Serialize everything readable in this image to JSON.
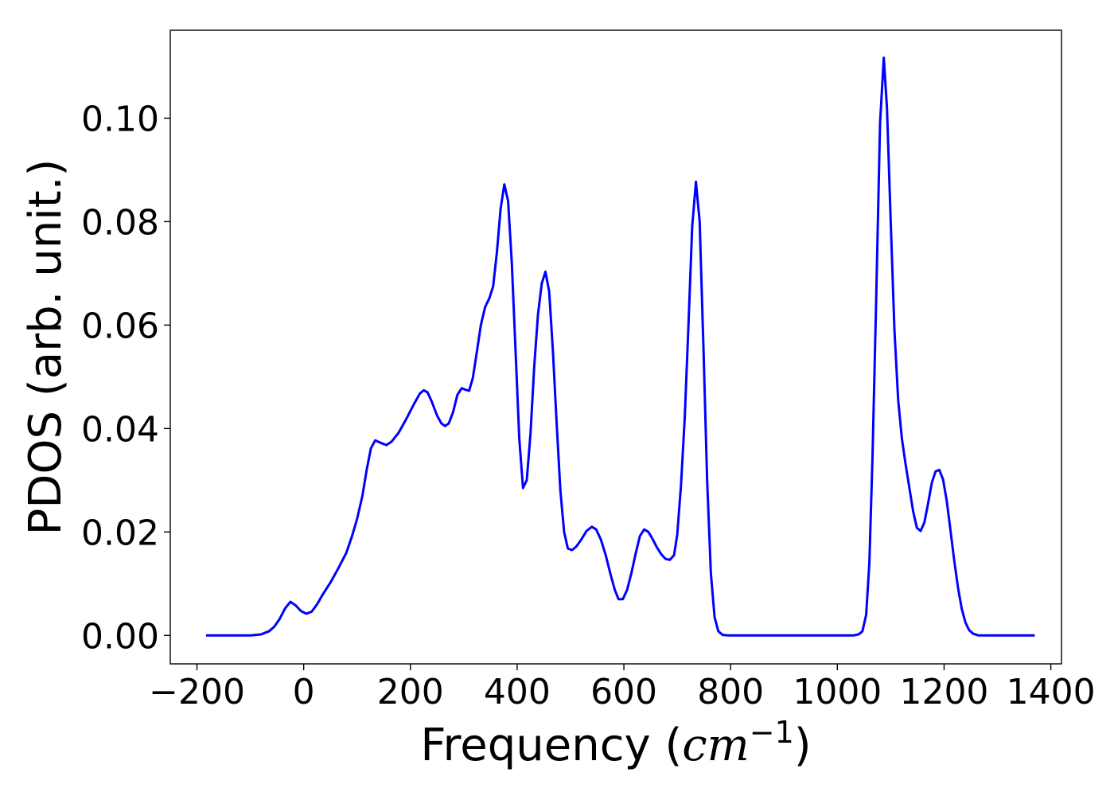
{
  "chart_data": {
    "type": "line",
    "title": "",
    "xlabel": "Frequency",
    "xlabel_unit_base": "cm",
    "xlabel_unit_exp": "−1",
    "ylabel": "PDOS (arb. unit.)",
    "xlim": [
      -250,
      1420
    ],
    "ylim": [
      -0.0055,
      0.117
    ],
    "grid": false,
    "x_ticks": [
      -200,
      0,
      200,
      400,
      600,
      800,
      1000,
      1200,
      1400
    ],
    "x_tick_labels": [
      "−200",
      "0",
      "200",
      "400",
      "600",
      "800",
      "1000",
      "1200",
      "1400"
    ],
    "y_ticks": [
      0.0,
      0.02,
      0.04,
      0.06,
      0.08,
      0.1
    ],
    "y_tick_labels": [
      "0.00",
      "0.02",
      "0.04",
      "0.06",
      "0.08",
      "0.10"
    ],
    "series": [
      {
        "color": "#0000ff",
        "points": [
          [
            -183,
            0.0
          ],
          [
            -100,
            0.0
          ],
          [
            -80,
            0.0002
          ],
          [
            -65,
            0.0008
          ],
          [
            -55,
            0.0017
          ],
          [
            -45,
            0.0032
          ],
          [
            -35,
            0.0052
          ],
          [
            -25,
            0.0065
          ],
          [
            -15,
            0.0058
          ],
          [
            -5,
            0.0047
          ],
          [
            5,
            0.0042
          ],
          [
            15,
            0.0046
          ],
          [
            25,
            0.006
          ],
          [
            35,
            0.0078
          ],
          [
            50,
            0.0102
          ],
          [
            65,
            0.013
          ],
          [
            80,
            0.016
          ],
          [
            90,
            0.019
          ],
          [
            100,
            0.0225
          ],
          [
            110,
            0.027
          ],
          [
            118,
            0.032
          ],
          [
            126,
            0.0362
          ],
          [
            134,
            0.0377
          ],
          [
            145,
            0.0372
          ],
          [
            155,
            0.0368
          ],
          [
            165,
            0.0375
          ],
          [
            178,
            0.0392
          ],
          [
            192,
            0.0418
          ],
          [
            207,
            0.0448
          ],
          [
            218,
            0.0468
          ],
          [
            225,
            0.0474
          ],
          [
            232,
            0.047
          ],
          [
            240,
            0.0452
          ],
          [
            250,
            0.0425
          ],
          [
            258,
            0.041
          ],
          [
            265,
            0.0405
          ],
          [
            272,
            0.041
          ],
          [
            280,
            0.0432
          ],
          [
            288,
            0.0465
          ],
          [
            296,
            0.0478
          ],
          [
            303,
            0.0475
          ],
          [
            310,
            0.0473
          ],
          [
            317,
            0.0498
          ],
          [
            324,
            0.0545
          ],
          [
            332,
            0.06
          ],
          [
            340,
            0.0635
          ],
          [
            348,
            0.0652
          ],
          [
            355,
            0.0675
          ],
          [
            362,
            0.074
          ],
          [
            369,
            0.0825
          ],
          [
            376,
            0.0872
          ],
          [
            383,
            0.084
          ],
          [
            390,
            0.072
          ],
          [
            397,
            0.055
          ],
          [
            404,
            0.038
          ],
          [
            411,
            0.0285
          ],
          [
            418,
            0.03
          ],
          [
            425,
            0.039
          ],
          [
            432,
            0.052
          ],
          [
            439,
            0.062
          ],
          [
            446,
            0.068
          ],
          [
            453,
            0.0703
          ],
          [
            460,
            0.0665
          ],
          [
            467,
            0.055
          ],
          [
            474,
            0.041
          ],
          [
            481,
            0.028
          ],
          [
            488,
            0.02
          ],
          [
            495,
            0.0168
          ],
          [
            503,
            0.0165
          ],
          [
            511,
            0.0172
          ],
          [
            520,
            0.0185
          ],
          [
            530,
            0.0202
          ],
          [
            540,
            0.021
          ],
          [
            548,
            0.0205
          ],
          [
            557,
            0.0185
          ],
          [
            566,
            0.0155
          ],
          [
            575,
            0.0118
          ],
          [
            583,
            0.0088
          ],
          [
            590,
            0.007
          ],
          [
            598,
            0.007
          ],
          [
            606,
            0.0088
          ],
          [
            614,
            0.012
          ],
          [
            622,
            0.0158
          ],
          [
            630,
            0.0192
          ],
          [
            638,
            0.0205
          ],
          [
            646,
            0.02
          ],
          [
            654,
            0.0186
          ],
          [
            662,
            0.017
          ],
          [
            670,
            0.0157
          ],
          [
            678,
            0.0148
          ],
          [
            686,
            0.0146
          ],
          [
            694,
            0.0155
          ],
          [
            700,
            0.0195
          ],
          [
            707,
            0.029
          ],
          [
            714,
            0.042
          ],
          [
            721,
            0.06
          ],
          [
            728,
            0.079
          ],
          [
            735,
            0.0877
          ],
          [
            742,
            0.08
          ],
          [
            749,
            0.056
          ],
          [
            756,
            0.03
          ],
          [
            763,
            0.012
          ],
          [
            770,
            0.0035
          ],
          [
            777,
            0.0008
          ],
          [
            785,
            0.0001
          ],
          [
            795,
            0.0
          ],
          [
            1030,
            0.0
          ],
          [
            1040,
            0.0002
          ],
          [
            1047,
            0.0008
          ],
          [
            1054,
            0.004
          ],
          [
            1060,
            0.014
          ],
          [
            1066,
            0.035
          ],
          [
            1073,
            0.066
          ],
          [
            1080,
            0.099
          ],
          [
            1087,
            0.1117
          ],
          [
            1093,
            0.102
          ],
          [
            1100,
            0.08
          ],
          [
            1107,
            0.059
          ],
          [
            1114,
            0.0455
          ],
          [
            1121,
            0.038
          ],
          [
            1128,
            0.033
          ],
          [
            1135,
            0.0285
          ],
          [
            1142,
            0.024
          ],
          [
            1149,
            0.0208
          ],
          [
            1156,
            0.0202
          ],
          [
            1163,
            0.0218
          ],
          [
            1170,
            0.0255
          ],
          [
            1177,
            0.0295
          ],
          [
            1184,
            0.0317
          ],
          [
            1191,
            0.032
          ],
          [
            1198,
            0.0302
          ],
          [
            1205,
            0.026
          ],
          [
            1212,
            0.0203
          ],
          [
            1219,
            0.0145
          ],
          [
            1226,
            0.0093
          ],
          [
            1233,
            0.0052
          ],
          [
            1240,
            0.0025
          ],
          [
            1247,
            0.001
          ],
          [
            1255,
            0.0003
          ],
          [
            1265,
            0.0
          ],
          [
            1370,
            0.0
          ]
        ]
      }
    ]
  }
}
